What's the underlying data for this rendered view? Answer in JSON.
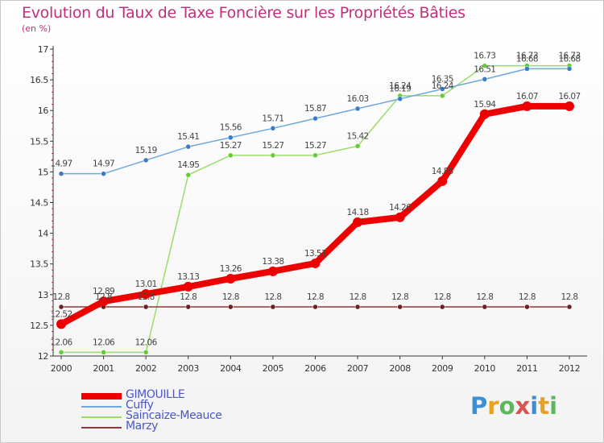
{
  "chart_data": {
    "type": "line",
    "title": "Evolution du Taux de Taxe Foncière sur les Propriétés Bâties",
    "unit_label": "(en %)",
    "x": [
      "2000",
      "2001",
      "2002",
      "2003",
      "2004",
      "2005",
      "2006",
      "2007",
      "2008",
      "2009",
      "2010",
      "2011",
      "2012"
    ],
    "ylim": [
      12,
      17
    ],
    "yticks": [
      "12",
      "12.5",
      "13",
      "13.5",
      "14",
      "14.5",
      "15",
      "15.5",
      "16",
      "16.5",
      "17"
    ],
    "grid": false,
    "legend_position": "bottom-left",
    "series": [
      {
        "name": "GIMOUILLE",
        "color": "#ee0000",
        "values": [
          12.52,
          12.89,
          13.01,
          13.13,
          13.26,
          13.38,
          13.51,
          14.18,
          14.26,
          14.85,
          15.94,
          16.07,
          16.07
        ],
        "labels": [
          "12.52",
          "12.89",
          "13.01",
          "13.13",
          "13.26",
          "13.38",
          "13.51",
          "14.18",
          "14.26",
          "14.85",
          "15.94",
          "16.07",
          "16.07"
        ]
      },
      {
        "name": "Cuffy",
        "color": "#6fa8dc",
        "marker_color": "#3a7bc8",
        "values": [
          14.97,
          14.97,
          15.19,
          15.41,
          15.56,
          15.71,
          15.87,
          16.03,
          16.19,
          16.35,
          16.51,
          16.68,
          16.68
        ],
        "labels": [
          "14.97",
          "14.97",
          "15.19",
          "15.41",
          "15.56",
          "15.71",
          "15.87",
          "16.03",
          "16.19",
          "16.35",
          "16.51",
          "16.68",
          "16.68"
        ]
      },
      {
        "name": "Saincaize-Meauce",
        "color": "#99dd66",
        "marker_color": "#66cc33",
        "values": [
          12.06,
          12.06,
          12.06,
          14.95,
          15.27,
          15.27,
          15.27,
          15.42,
          16.24,
          16.24,
          16.73,
          16.73,
          16.73
        ],
        "labels": [
          "12.06",
          "12.06",
          "12.06",
          "14.95",
          "15.27",
          "15.27",
          "15.27",
          "15.42",
          "16.24",
          "16.24",
          "16.73",
          "16.73",
          "16.73"
        ]
      },
      {
        "name": "Marzy",
        "color": "#8b3a3a",
        "marker_color": "#6b1f1f",
        "values": [
          12.8,
          12.8,
          12.8,
          12.8,
          12.8,
          12.8,
          12.8,
          12.8,
          12.8,
          12.8,
          12.8,
          12.8,
          12.8
        ],
        "labels": [
          "12.8",
          "12.8",
          "12.8",
          "12.8",
          "12.8",
          "12.8",
          "12.8",
          "12.8",
          "12.8",
          "12.8",
          "12.8",
          "12.8",
          "12.8"
        ]
      }
    ]
  },
  "logo": {
    "letters": [
      "P",
      "r",
      "o",
      "x",
      "i",
      "t",
      "i"
    ],
    "colors": [
      "#3a8fd8",
      "#e8a020",
      "#5cb85c",
      "#d9534f",
      "#3a8fd8",
      "#e8a020",
      "#5cb85c"
    ]
  }
}
